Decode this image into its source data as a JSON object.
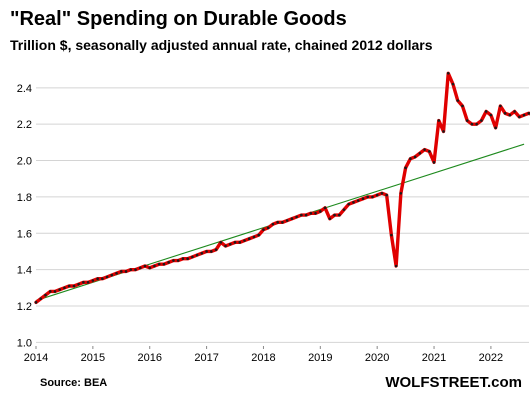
{
  "title": "\"Real\" Spending on Durable Goods",
  "subtitle": "Trillion $, seasonally adjusted annual rate, chained 2012 dollars",
  "source": "Source: BEA",
  "brand": "WOLFSTREET.com",
  "colors": {
    "series": "#e00000",
    "marker": "#1a1a1a",
    "trend": "#1e8a1e",
    "grid": "#d4d4d4"
  },
  "chart_data": {
    "type": "line",
    "x_ticks": [
      "2014",
      "2015",
      "2016",
      "2017",
      "2018",
      "2019",
      "2020",
      "2021",
      "2022"
    ],
    "y_ticks": [
      "1.0",
      "1.2",
      "1.4",
      "1.6",
      "1.8",
      "2.0",
      "2.2",
      "2.4"
    ],
    "xlim": [
      2014.0,
      2022.67
    ],
    "ylim": [
      0.98,
      2.52
    ],
    "grid": "horizontal",
    "series": [
      {
        "start": "2014-01",
        "frequency": "monthly",
        "values": [
          1.22,
          1.24,
          1.26,
          1.28,
          1.28,
          1.29,
          1.3,
          1.31,
          1.31,
          1.32,
          1.33,
          1.33,
          1.34,
          1.35,
          1.35,
          1.36,
          1.37,
          1.38,
          1.39,
          1.39,
          1.4,
          1.4,
          1.41,
          1.42,
          1.41,
          1.42,
          1.43,
          1.43,
          1.44,
          1.45,
          1.45,
          1.46,
          1.46,
          1.47,
          1.48,
          1.49,
          1.5,
          1.5,
          1.51,
          1.55,
          1.53,
          1.54,
          1.55,
          1.55,
          1.56,
          1.57,
          1.58,
          1.59,
          1.62,
          1.63,
          1.65,
          1.66,
          1.66,
          1.67,
          1.68,
          1.69,
          1.7,
          1.7,
          1.71,
          1.71,
          1.72,
          1.74,
          1.68,
          1.7,
          1.7,
          1.73,
          1.76,
          1.77,
          1.78,
          1.79,
          1.8,
          1.8,
          1.81,
          1.82,
          1.81,
          1.59,
          1.42,
          1.82,
          1.96,
          2.01,
          2.02,
          2.04,
          2.06,
          2.05,
          1.99,
          2.22,
          2.16,
          2.48,
          2.42,
          2.33,
          2.3,
          2.22,
          2.2,
          2.2,
          2.22,
          2.27,
          2.25,
          2.18,
          2.3,
          2.26,
          2.25,
          2.27,
          2.24,
          2.25,
          2.26,
          2.25
        ]
      },
      {
        "type": "trend",
        "x": [
          "2014-01",
          "2022-08"
        ],
        "values": [
          1.23,
          2.09
        ]
      }
    ]
  }
}
